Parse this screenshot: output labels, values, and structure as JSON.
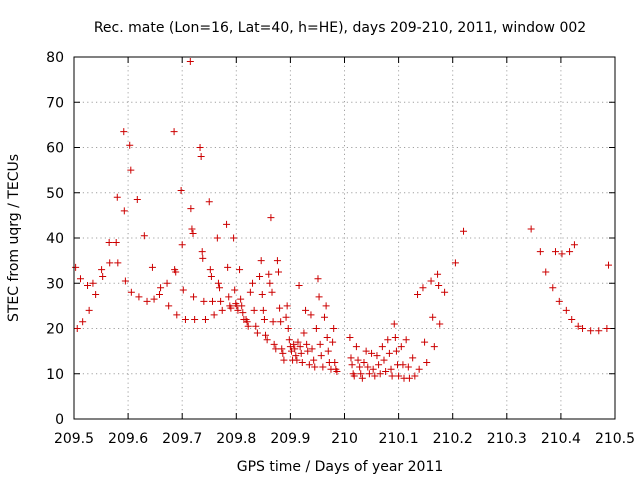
{
  "chart_data": {
    "type": "scatter",
    "title": "Rec. mate (Lon=16, Lat=40, h=HE), days 209-210, 2011, window 002",
    "xlabel": "GPS time / Days of year 2011",
    "ylabel": "STEC from uqrg / TECUs",
    "xlim": [
      209.5,
      210.5
    ],
    "ylim": [
      0,
      80
    ],
    "xticks": [
      "209.5",
      "209.6",
      "209.7",
      "209.8",
      "209.9",
      "210",
      "210.1",
      "210.2",
      "210.3",
      "210.4",
      "210.5"
    ],
    "yticks": [
      "0",
      "10",
      "20",
      "30",
      "40",
      "50",
      "60",
      "70",
      "80"
    ],
    "grid": true,
    "marker": "plus",
    "color": "#cc0000",
    "points": [
      [
        209.503,
        33.5
      ],
      [
        209.506,
        20.0
      ],
      [
        209.512,
        31.0
      ],
      [
        209.516,
        21.5
      ],
      [
        209.525,
        29.5
      ],
      [
        209.528,
        24.0
      ],
      [
        209.535,
        30.0
      ],
      [
        209.54,
        27.5
      ],
      [
        209.551,
        33.0
      ],
      [
        209.553,
        31.5
      ],
      [
        209.565,
        39.0
      ],
      [
        209.566,
        34.5
      ],
      [
        209.578,
        39.0
      ],
      [
        209.58,
        49.0
      ],
      [
        209.581,
        34.5
      ],
      [
        209.592,
        63.5
      ],
      [
        209.593,
        46.0
      ],
      [
        209.595,
        30.5
      ],
      [
        209.603,
        60.5
      ],
      [
        209.605,
        55.0
      ],
      [
        209.606,
        28.0
      ],
      [
        209.617,
        48.5
      ],
      [
        209.62,
        27.0
      ],
      [
        209.63,
        40.5
      ],
      [
        209.635,
        26.0
      ],
      [
        209.645,
        33.5
      ],
      [
        209.648,
        26.5
      ],
      [
        209.658,
        27.5
      ],
      [
        209.66,
        29.0
      ],
      [
        209.672,
        30.0
      ],
      [
        209.675,
        25.0
      ],
      [
        209.685,
        63.5
      ],
      [
        209.686,
        33.0
      ],
      [
        209.688,
        32.5
      ],
      [
        209.69,
        23.0
      ],
      [
        209.698,
        50.5
      ],
      [
        209.7,
        38.5
      ],
      [
        209.702,
        28.5
      ],
      [
        209.706,
        22.0
      ],
      [
        209.715,
        79.0
      ],
      [
        209.716,
        46.5
      ],
      [
        209.718,
        42.0
      ],
      [
        209.72,
        41.0
      ],
      [
        209.721,
        27.0
      ],
      [
        209.723,
        22.0
      ],
      [
        209.733,
        60.0
      ],
      [
        209.735,
        58.0
      ],
      [
        209.737,
        37.0
      ],
      [
        209.738,
        35.5
      ],
      [
        209.74,
        26.0
      ],
      [
        209.743,
        22.0
      ],
      [
        209.75,
        48.0
      ],
      [
        209.752,
        33.0
      ],
      [
        209.754,
        31.5
      ],
      [
        209.756,
        26.0
      ],
      [
        209.759,
        23.0
      ],
      [
        209.765,
        40.0
      ],
      [
        209.767,
        30.0
      ],
      [
        209.769,
        29.0
      ],
      [
        209.771,
        26.0
      ],
      [
        209.774,
        24.0
      ],
      [
        209.782,
        43.0
      ],
      [
        209.784,
        33.5
      ],
      [
        209.786,
        27.0
      ],
      [
        209.788,
        25.0
      ],
      [
        209.79,
        24.5
      ],
      [
        209.795,
        40.0
      ],
      [
        209.797,
        28.5
      ],
      [
        209.799,
        25.5
      ],
      [
        209.801,
        25.0
      ],
      [
        209.803,
        24.0
      ],
      [
        209.806,
        33.0
      ],
      [
        209.808,
        26.5
      ],
      [
        209.81,
        25.0
      ],
      [
        209.812,
        23.5
      ],
      [
        209.814,
        22.0
      ],
      [
        209.818,
        22.0
      ],
      [
        209.82,
        21.5
      ],
      [
        209.822,
        20.5
      ],
      [
        209.826,
        28.0
      ],
      [
        209.83,
        30.0
      ],
      [
        209.833,
        24.0
      ],
      [
        209.836,
        20.5
      ],
      [
        209.839,
        19.0
      ],
      [
        209.843,
        31.5
      ],
      [
        209.846,
        35.0
      ],
      [
        209.848,
        27.5
      ],
      [
        209.85,
        24.0
      ],
      [
        209.852,
        22.0
      ],
      [
        209.854,
        18.5
      ],
      [
        209.857,
        17.5
      ],
      [
        209.86,
        32.0
      ],
      [
        209.862,
        30.0
      ],
      [
        209.864,
        44.5
      ],
      [
        209.866,
        28.0
      ],
      [
        209.868,
        21.5
      ],
      [
        209.87,
        16.5
      ],
      [
        209.873,
        15.5
      ],
      [
        209.876,
        35.0
      ],
      [
        209.878,
        32.5
      ],
      [
        209.88,
        24.5
      ],
      [
        209.882,
        21.5
      ],
      [
        209.884,
        15.5
      ],
      [
        209.886,
        14.5
      ],
      [
        209.888,
        13.0
      ],
      [
        209.892,
        22.5
      ],
      [
        209.894,
        25.0
      ],
      [
        209.896,
        20.0
      ],
      [
        209.898,
        17.5
      ],
      [
        209.9,
        16.0
      ],
      [
        209.902,
        15.0
      ],
      [
        209.904,
        13.0
      ],
      [
        209.906,
        16.5
      ],
      [
        209.908,
        15.5
      ],
      [
        209.91,
        14.0
      ],
      [
        209.912,
        13.0
      ],
      [
        209.914,
        17.0
      ],
      [
        209.916,
        29.5
      ],
      [
        209.918,
        16.0
      ],
      [
        209.92,
        14.5
      ],
      [
        209.922,
        12.5
      ],
      [
        209.925,
        19.0
      ],
      [
        209.928,
        24.0
      ],
      [
        209.93,
        16.5
      ],
      [
        209.932,
        15.0
      ],
      [
        209.935,
        12.0
      ],
      [
        209.938,
        23.0
      ],
      [
        209.94,
        15.5
      ],
      [
        209.943,
        13.0
      ],
      [
        209.945,
        11.5
      ],
      [
        209.948,
        20.0
      ],
      [
        209.951,
        31.0
      ],
      [
        209.953,
        27.0
      ],
      [
        209.955,
        16.5
      ],
      [
        209.957,
        14.0
      ],
      [
        209.96,
        11.5
      ],
      [
        209.963,
        22.5
      ],
      [
        209.966,
        25.0
      ],
      [
        209.968,
        18.0
      ],
      [
        209.97,
        15.0
      ],
      [
        209.972,
        12.5
      ],
      [
        209.975,
        11.0
      ],
      [
        209.978,
        17.0
      ],
      [
        209.98,
        20.0
      ],
      [
        209.982,
        12.5
      ],
      [
        209.984,
        11.0
      ],
      [
        209.986,
        10.5
      ],
      [
        210.01,
        18.0
      ],
      [
        210.012,
        13.5
      ],
      [
        210.014,
        12.0
      ],
      [
        210.016,
        10.0
      ],
      [
        210.018,
        9.5
      ],
      [
        210.022,
        16.0
      ],
      [
        210.025,
        13.0
      ],
      [
        210.028,
        11.5
      ],
      [
        210.03,
        10.0
      ],
      [
        210.033,
        9.0
      ],
      [
        210.036,
        12.5
      ],
      [
        210.04,
        15.0
      ],
      [
        210.043,
        11.5
      ],
      [
        210.046,
        10.0
      ],
      [
        210.05,
        14.5
      ],
      [
        210.053,
        11.0
      ],
      [
        210.056,
        9.5
      ],
      [
        210.06,
        14.0
      ],
      [
        210.063,
        12.0
      ],
      [
        210.066,
        10.0
      ],
      [
        210.07,
        16.0
      ],
      [
        210.073,
        13.0
      ],
      [
        210.076,
        10.5
      ],
      [
        210.08,
        17.5
      ],
      [
        210.083,
        14.5
      ],
      [
        210.086,
        11.0
      ],
      [
        210.088,
        9.5
      ],
      [
        210.092,
        21.0
      ],
      [
        210.094,
        18.0
      ],
      [
        210.096,
        15.0
      ],
      [
        210.098,
        12.0
      ],
      [
        210.1,
        9.5
      ],
      [
        210.105,
        16.0
      ],
      [
        210.108,
        12.0
      ],
      [
        210.11,
        9.0
      ],
      [
        210.114,
        17.5
      ],
      [
        210.118,
        11.5
      ],
      [
        210.12,
        9.0
      ],
      [
        210.126,
        13.5
      ],
      [
        210.13,
        9.5
      ],
      [
        210.135,
        27.5
      ],
      [
        210.138,
        11.0
      ],
      [
        210.145,
        29.0
      ],
      [
        210.148,
        17.0
      ],
      [
        210.152,
        12.5
      ],
      [
        210.16,
        30.5
      ],
      [
        210.163,
        22.5
      ],
      [
        210.166,
        16.0
      ],
      [
        210.172,
        32.0
      ],
      [
        210.174,
        29.5
      ],
      [
        210.176,
        21.0
      ],
      [
        210.185,
        28.0
      ],
      [
        210.205,
        34.5
      ],
      [
        210.22,
        41.5
      ],
      [
        210.345,
        42.0
      ],
      [
        210.362,
        37.0
      ],
      [
        210.372,
        32.5
      ],
      [
        210.385,
        29.0
      ],
      [
        210.39,
        37.0
      ],
      [
        210.397,
        26.0
      ],
      [
        210.402,
        36.5
      ],
      [
        210.41,
        24.0
      ],
      [
        210.416,
        37.0
      ],
      [
        210.42,
        22.0
      ],
      [
        210.425,
        38.5
      ],
      [
        210.432,
        20.5
      ],
      [
        210.44,
        20.0
      ],
      [
        210.455,
        19.5
      ],
      [
        210.47,
        19.5
      ],
      [
        210.485,
        20.0
      ],
      [
        210.488,
        34.0
      ]
    ]
  }
}
